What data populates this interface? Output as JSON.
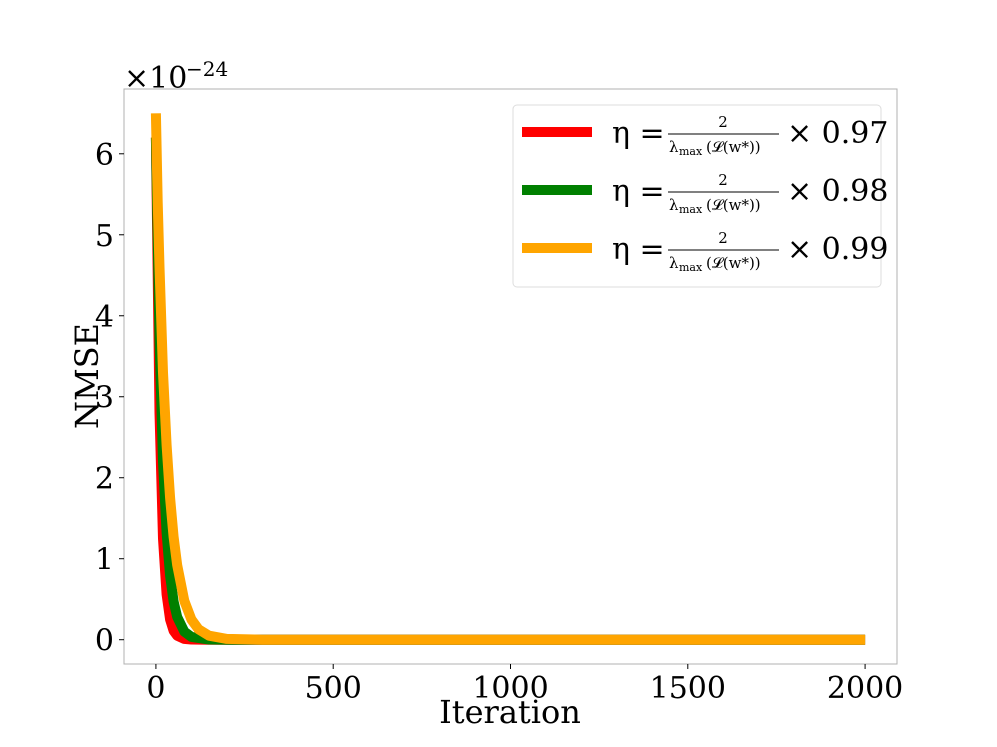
{
  "chart_data": {
    "type": "line",
    "title": "",
    "xlabel": "Iteration",
    "ylabel": "NMSE",
    "xlim": [
      -90,
      2090
    ],
    "ylim": [
      -0.3,
      6.8
    ],
    "y_multiplier": {
      "base": "×10",
      "exponent": "−24"
    },
    "x_ticks": [
      0,
      500,
      1000,
      1500,
      2000
    ],
    "y_ticks": [
      0,
      1,
      2,
      3,
      4,
      5,
      6
    ],
    "x_tick_labels": [
      "0",
      "500",
      "1000",
      "1500",
      "2000"
    ],
    "y_tick_labels": [
      "0",
      "1",
      "2",
      "3",
      "4",
      "5",
      "6"
    ],
    "grid": false,
    "legend_position": "upper-right",
    "series": [
      {
        "name": "η = 2/(λmax(𝓛(w*))) × 0.97",
        "legend": {
          "eta": "η =",
          "numerator": "2",
          "lambda": "λ",
          "lambda_sub": "max",
          "arg": "(𝓛(w*))",
          "factor": "× 0.97"
        },
        "color": "#ff0000",
        "x": [
          0,
          10,
          20,
          30,
          40,
          50,
          60,
          80,
          100,
          150,
          200,
          500,
          1000,
          1500,
          2000
        ],
        "values": [
          6.2,
          2.8,
          1.25,
          0.56,
          0.25,
          0.11,
          0.05,
          0.01,
          0.002,
          0,
          0,
          0,
          0,
          0,
          0
        ]
      },
      {
        "name": "η = 2/(λmax(𝓛(w*))) × 0.98",
        "legend": {
          "eta": "η =",
          "numerator": "2",
          "lambda": "λ",
          "lambda_sub": "max",
          "arg": "(𝓛(w*))",
          "factor": "× 0.98"
        },
        "color": "#008000",
        "x": [
          0,
          10,
          20,
          30,
          40,
          50,
          60,
          80,
          100,
          150,
          200,
          500,
          1000,
          1500,
          2000
        ],
        "values": [
          6.2,
          3.7,
          2.2,
          1.32,
          0.79,
          0.47,
          0.28,
          0.1,
          0.035,
          0.003,
          0,
          0,
          0,
          0,
          0
        ]
      },
      {
        "name": "η = 2/(λmax(𝓛(w*))) × 0.99",
        "legend": {
          "eta": "η =",
          "numerator": "2",
          "lambda": "λ",
          "lambda_sub": "max",
          "arg": "(𝓛(w*))",
          "factor": "× 0.99"
        },
        "color": "#ffa500",
        "x": [
          0,
          5,
          10,
          20,
          30,
          40,
          50,
          60,
          80,
          100,
          120,
          150,
          200,
          300,
          500,
          1000,
          1500,
          2000
        ],
        "values": [
          6.5,
          5.4,
          4.6,
          3.3,
          2.4,
          1.75,
          1.27,
          0.92,
          0.48,
          0.25,
          0.13,
          0.05,
          0.01,
          0,
          0,
          0,
          0,
          0
        ]
      }
    ]
  }
}
